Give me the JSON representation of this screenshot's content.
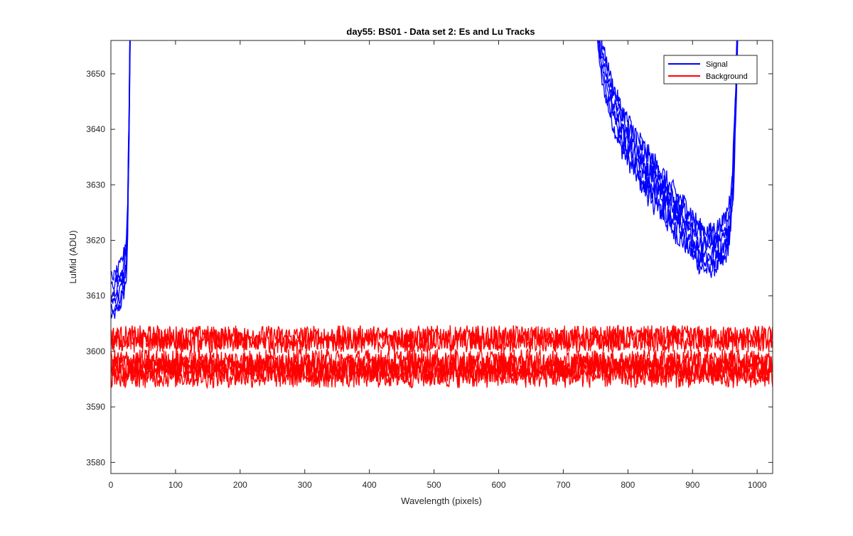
{
  "chart_data": {
    "type": "line",
    "title": "day55: BS01 - Data set 2: Es and Lu Tracks",
    "xlabel": "Wavelength (pixels)",
    "ylabel": "LuMid (ADU)",
    "xlim": [
      0,
      1024
    ],
    "ylim": [
      3578,
      3656
    ],
    "xticks": [
      0,
      100,
      200,
      300,
      400,
      500,
      600,
      700,
      800,
      900,
      1000
    ],
    "yticks": [
      3580,
      3590,
      3600,
      3610,
      3620,
      3630,
      3640,
      3650
    ],
    "grid": false,
    "legend_position": "top-right",
    "series": [
      {
        "name": "Signal",
        "color": "#0000ff",
        "traces": 6,
        "noise_amplitude": 2.2,
        "x": [
          0,
          5,
          10,
          15,
          20,
          24,
          26,
          28,
          30,
          32,
          750,
          760,
          775,
          790,
          805,
          820,
          835,
          850,
          865,
          880,
          895,
          910,
          925,
          940,
          950,
          958,
          963,
          967,
          970,
          975
        ],
        "y": [
          3610,
          3610,
          3611,
          3612,
          3614,
          3617,
          3624,
          3640,
          3660,
          3680,
          3662,
          3652,
          3645,
          3640,
          3637,
          3634,
          3631,
          3629,
          3626,
          3624,
          3622,
          3619,
          3618,
          3619,
          3620,
          3624,
          3632,
          3645,
          3660,
          3680
        ],
        "segments": [
          [
            0,
            32
          ],
          [
            750,
            975
          ]
        ]
      },
      {
        "name": "Background",
        "color": "#ff0000",
        "traces": 6,
        "noise_amplitude": 2.2,
        "x": [
          0,
          100,
          200,
          300,
          400,
          500,
          600,
          700,
          800,
          900,
          1024
        ],
        "y": [
          3600,
          3600,
          3600,
          3600,
          3600,
          3600,
          3600,
          3600,
          3600,
          3600,
          3600
        ],
        "trace_offsets": [
          2.5,
          1.9,
          -1.8,
          -2.6,
          -3.4,
          -4.4
        ],
        "segments": [
          [
            0,
            1024
          ]
        ]
      }
    ]
  }
}
